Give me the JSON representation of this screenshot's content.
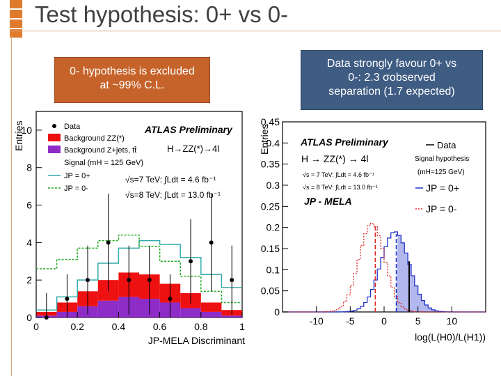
{
  "slide": {
    "title": "Test hypothesis: 0+ vs 0-",
    "accent_color": "#e07b2e"
  },
  "callouts": {
    "left": [
      "0- hypothesis is excluded",
      "at ~99% C.L."
    ],
    "right": [
      "Data strongly favour 0+ vs",
      "0-: 2.3 σobserved",
      "separation (1.7 expected)"
    ]
  },
  "chart_data": [
    {
      "type": "bar",
      "title": "ATLAS Preliminary",
      "process": "H→ZZ(*)→4l",
      "xlabel": "JP-MELA Discriminant",
      "ylabel": "Entries",
      "xlim": [
        0,
        1
      ],
      "ylim": [
        0,
        11
      ],
      "xticks": [
        "0",
        "0.2",
        "0.4",
        "0.6",
        "0.8",
        "1"
      ],
      "yticks": [
        "0",
        "2",
        "4",
        "6",
        "8",
        "10"
      ],
      "x": [
        0.05,
        0.15,
        0.25,
        0.35,
        0.45,
        0.55,
        0.65,
        0.75,
        0.85,
        0.95
      ],
      "series": [
        {
          "name": "Background Z+jets, tt̄",
          "color": "#8e2cc8",
          "values": [
            0.1,
            0.3,
            0.6,
            0.9,
            1.1,
            1.0,
            0.8,
            0.5,
            0.3,
            0.1
          ]
        },
        {
          "name": "Background ZZ(*)",
          "color": "#ee1111",
          "values": [
            0.2,
            0.5,
            0.8,
            1.1,
            1.3,
            1.3,
            1.0,
            0.8,
            0.5,
            0.3
          ]
        },
        {
          "name": "Signal (mH = 125 GeV) JP = 0+",
          "color": "#33aaaa",
          "values": [
            0.1,
            0.3,
            0.6,
            0.9,
            1.3,
            1.8,
            2.1,
            1.9,
            1.5,
            1.2
          ]
        },
        {
          "name": "JP = 0-",
          "color": "#22aa22",
          "values": [
            2.3,
            2.3,
            2.3,
            2.1,
            2.0,
            1.5,
            1.2,
            0.9,
            0.6,
            0.4
          ]
        }
      ],
      "data_points": {
        "name": "Data",
        "x": [
          0.05,
          0.15,
          0.25,
          0.35,
          0.45,
          0.55,
          0.65,
          0.75,
          0.85,
          0.95
        ],
        "y": [
          0,
          1,
          2,
          4,
          2,
          2,
          1,
          3,
          4,
          2
        ]
      },
      "legend": [
        "Data",
        "Background ZZ(*)",
        "Background Z+jets, tt̄",
        "Signal (mH = 125 GeV)",
        "JP = 0+",
        "JP = 0-"
      ],
      "annotations": [
        "√s=7 TeV: ∫Ldt = 4.6 fb⁻¹",
        "√s=8 TeV: ∫Ldt = 13.0 fb⁻¹"
      ]
    },
    {
      "type": "bar",
      "title": "ATLAS Preliminary",
      "process": "H → ZZ(*) → 4l",
      "method": "JP - MELA",
      "xlabel": "log(L(H0)/L(H1))",
      "ylabel": "Entries",
      "xlim": [
        -15,
        15
      ],
      "ylim": [
        0,
        0.45
      ],
      "xticks": [
        "-10",
        "-5",
        "0",
        "5",
        "10"
      ],
      "yticks": [
        "0",
        "0.05",
        "0.1",
        "0.15",
        "0.2",
        "0.25",
        "0.3",
        "0.35",
        "0.4",
        "0.45"
      ],
      "series": [
        {
          "name": "J^P_H0 = 0+",
          "color": "#2233cc",
          "mean": 1.6,
          "sigma": 2.1,
          "peak": 0.19
        },
        {
          "name": "J^P_H1 = 0-",
          "color": "#dd2222",
          "mean": -1.8,
          "sigma": 1.9,
          "peak": 0.21
        }
      ],
      "observed": {
        "name": "Data",
        "value": 3.7
      },
      "median_lines": [
        -1.3,
        1.8
      ],
      "legend": [
        "Data",
        "Signal hypothesis",
        "(mH=125 GeV)",
        "JP = 0+",
        "JP = 0-"
      ],
      "annotations": [
        "√s = 7 TeV: ∫Ldt = 4.6 fb⁻¹",
        "√s = 8 TeV: ∫Ldt = 13.0 fb⁻¹"
      ]
    }
  ]
}
